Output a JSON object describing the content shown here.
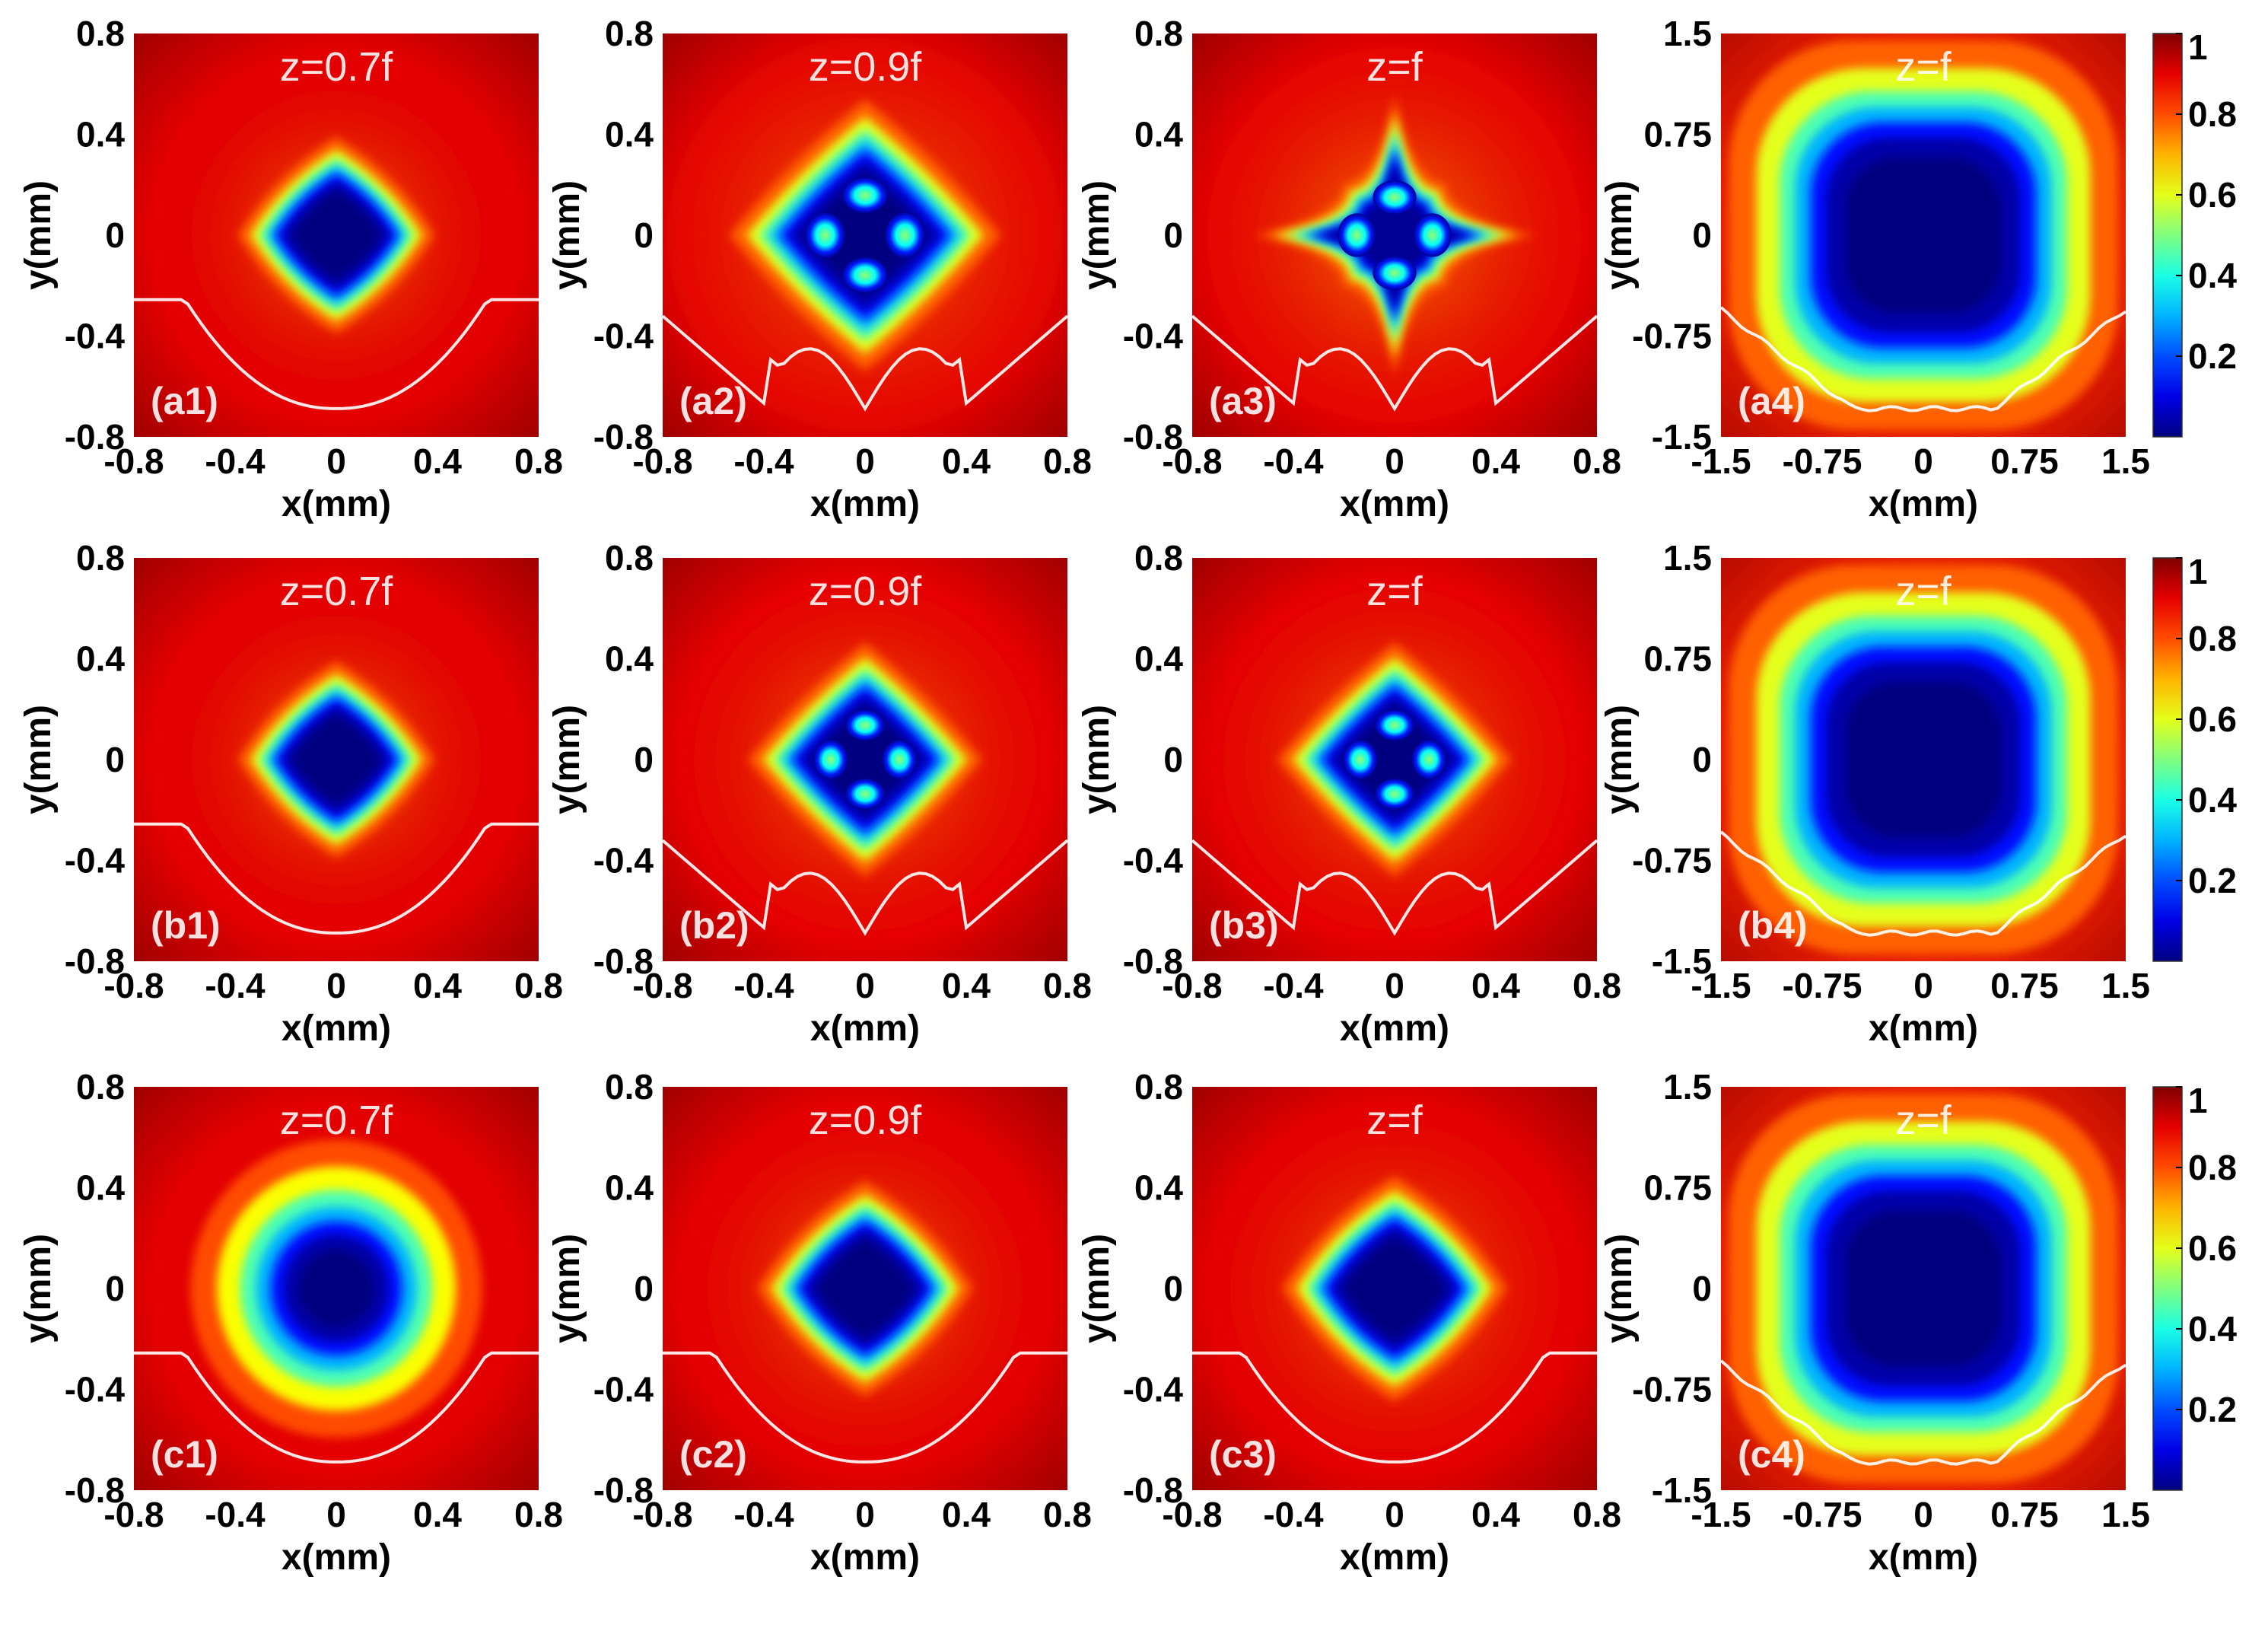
{
  "chart_data": {
    "type": "heatmap",
    "layout": "3 rows x 4 columns of normalized intensity maps with a colorbar at the end of each row",
    "colormap": "jet",
    "profile_curve_color": "#ffffff",
    "label_color": "#ffffff",
    "colorbar": {
      "range": [
        0,
        1
      ],
      "ticks": [
        "0.2",
        "0.4",
        "0.6",
        "0.8",
        "1"
      ]
    },
    "axis_sets": {
      "small": {
        "xlabel": "x(mm)",
        "ylabel": "y(mm)",
        "lim": [
          -0.8,
          0.8
        ],
        "xticks": [
          "-0.8",
          "-0.4",
          "0",
          "0.4",
          "0.8"
        ],
        "yticks": [
          "0.8",
          "0.4",
          "0",
          "-0.4",
          "-0.8"
        ]
      },
      "large": {
        "xlabel": "x(mm)",
        "ylabel": "y(mm)",
        "lim": [
          -1.5,
          1.5
        ],
        "xticks": [
          "-1.5",
          "-0.75",
          "0",
          "0.75",
          "1.5"
        ],
        "yticks": [
          "1.5",
          "0.75",
          "0",
          "-0.75",
          "-1.5"
        ]
      }
    },
    "rows": [
      {
        "panels": [
          {
            "label": "(a1)",
            "title": "z=0.7f",
            "axes": "small",
            "pattern": "diamond",
            "core_size": 0.42
          },
          {
            "label": "(a2)",
            "title": "z=0.9f",
            "axes": "small",
            "pattern": "diamond-four-lobes",
            "core_size": 0.58
          },
          {
            "label": "(a3)",
            "title": "z=f",
            "axes": "small",
            "pattern": "star-four-lobes",
            "core_size": 0.55
          },
          {
            "label": "(a4)",
            "title": "z=f",
            "axes": "large",
            "pattern": "square",
            "core_size": 0.98
          }
        ]
      },
      {
        "panels": [
          {
            "label": "(b1)",
            "title": "z=0.7f",
            "axes": "small",
            "pattern": "diamond",
            "core_size": 0.42
          },
          {
            "label": "(b2)",
            "title": "z=0.9f",
            "axes": "small",
            "pattern": "diamond-four-lobes",
            "core_size": 0.5
          },
          {
            "label": "(b3)",
            "title": "z=f",
            "axes": "small",
            "pattern": "diamond-four-lobes",
            "core_size": 0.5
          },
          {
            "label": "(b4)",
            "title": "z=f",
            "axes": "large",
            "pattern": "square",
            "core_size": 0.98
          }
        ]
      },
      {
        "panels": [
          {
            "label": "(c1)",
            "title": "z=0.7f",
            "axes": "small",
            "pattern": "round",
            "core_size": 0.4
          },
          {
            "label": "(c2)",
            "title": "z=0.9f",
            "axes": "small",
            "pattern": "diamond",
            "core_size": 0.46
          },
          {
            "label": "(c3)",
            "title": "z=f",
            "axes": "small",
            "pattern": "diamond",
            "core_size": 0.48
          },
          {
            "label": "(c4)",
            "title": "z=f",
            "axes": "large",
            "pattern": "square",
            "core_size": 0.98
          }
        ]
      }
    ]
  }
}
